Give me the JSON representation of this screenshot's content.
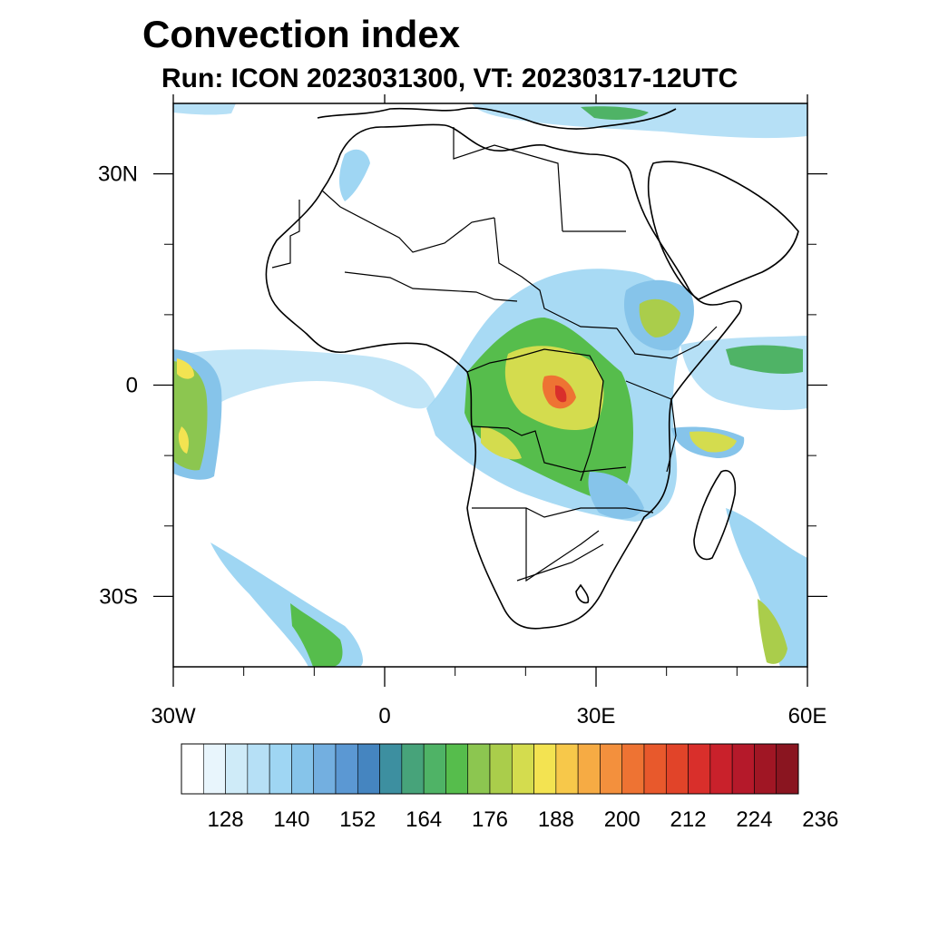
{
  "title": "Convection index",
  "subtitle": "Run: ICON 2023031300,  VT: 20230317-12UTC",
  "map": {
    "lon_range": [
      -30,
      60
    ],
    "lat_range": [
      -40,
      40
    ],
    "x_ticks": [
      {
        "lon": -30,
        "label": "30W"
      },
      {
        "lon": 0,
        "label": "0"
      },
      {
        "lon": 30,
        "label": "30E"
      },
      {
        "lon": 60,
        "label": "60E"
      }
    ],
    "y_ticks": [
      {
        "lat": 30,
        "label": "30N"
      },
      {
        "lat": 0,
        "label": "0"
      },
      {
        "lat": -30,
        "label": "30S"
      }
    ],
    "minor_lon_ticks": [
      -20,
      -10,
      10,
      20,
      40,
      50
    ],
    "minor_lat_ticks": [
      20,
      10,
      -10,
      -20
    ]
  },
  "colorbar": {
    "colors": [
      "#ffffff",
      "#e8f5fc",
      "#cfebf8",
      "#b6e0f6",
      "#9fd6f3",
      "#86c4ea",
      "#73afe0",
      "#5b98d3",
      "#4585c0",
      "#3d8fa0",
      "#47a37a",
      "#4fb366",
      "#56bd4c",
      "#8cc650",
      "#aacd4b",
      "#d4dc4e",
      "#f3e351",
      "#f7c84a",
      "#f6ab44",
      "#f3903d",
      "#ee7333",
      "#e8592c",
      "#e14429",
      "#d92f2b",
      "#c9212b",
      "#b5192a",
      "#a01624",
      "#8a1520"
    ],
    "labels": [
      "128",
      "140",
      "152",
      "164",
      "176",
      "188",
      "200",
      "212",
      "224",
      "236"
    ],
    "label_values": [
      128,
      140,
      152,
      164,
      176,
      188,
      200,
      212,
      224,
      236
    ]
  }
}
